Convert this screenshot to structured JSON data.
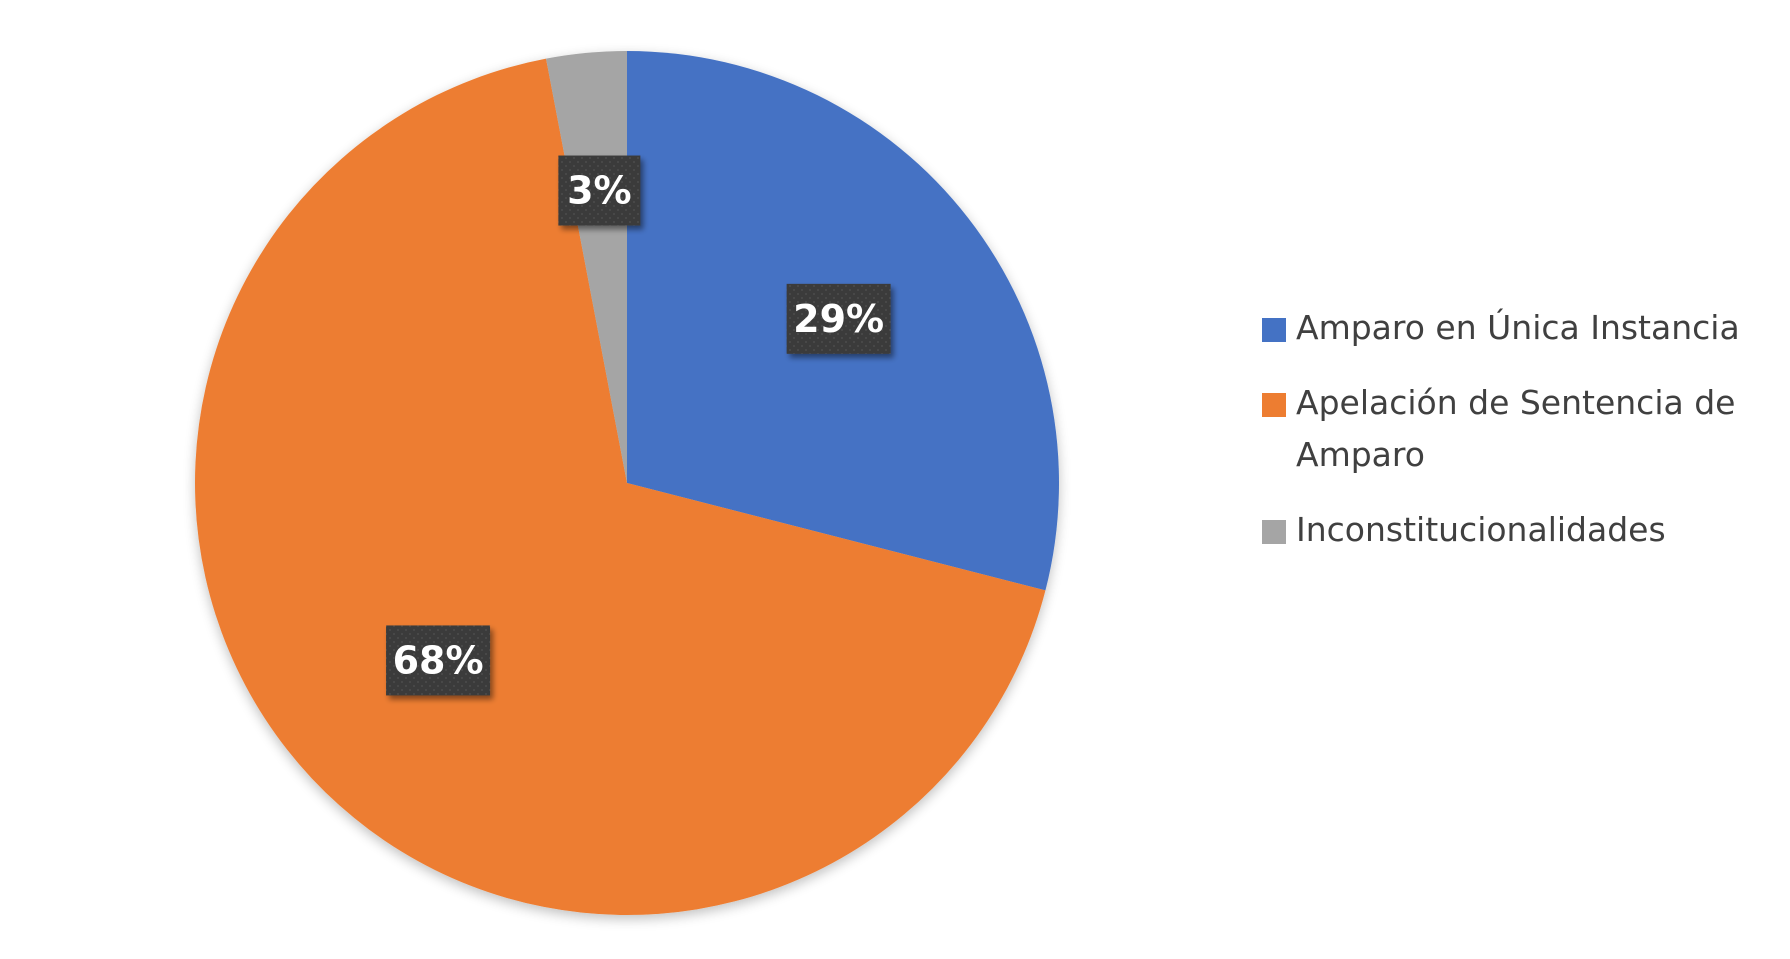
{
  "chart_data": {
    "type": "pie",
    "categories": [
      "Amparo en Única Instancia",
      "Apelación de Sentencia de Amparo",
      "Inconstitucionalidades"
    ],
    "values": [
      29,
      68,
      3
    ],
    "labels": [
      "29%",
      "68%",
      "3%"
    ],
    "colors": [
      "#4472C4",
      "#ED7D31",
      "#A5A5A5"
    ],
    "legend_position": "right",
    "title": ""
  }
}
